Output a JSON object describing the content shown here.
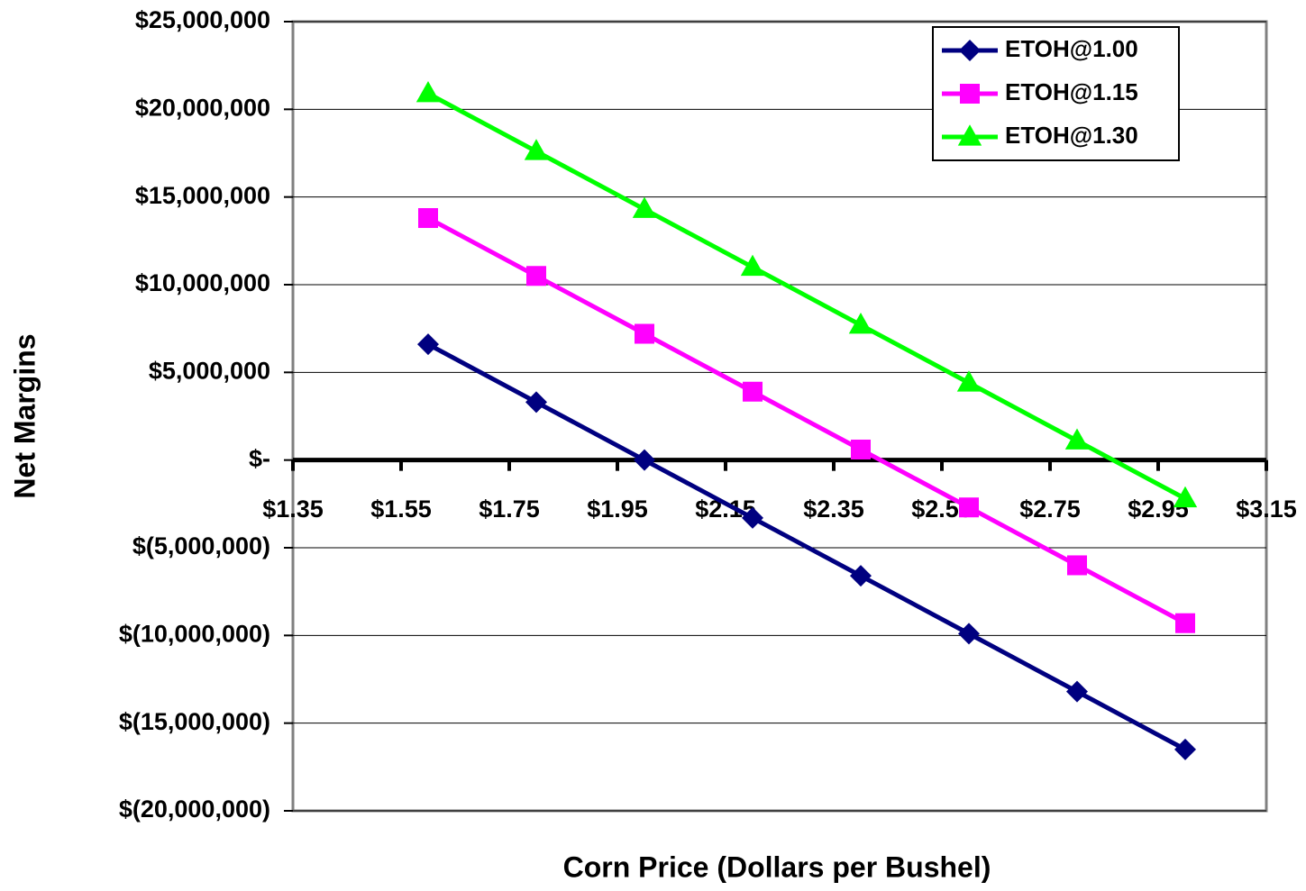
{
  "chart_data": {
    "type": "line",
    "x_label": "Corn Price (Dollars per Bushel)",
    "y_label": "Net Margins",
    "x": [
      1.6,
      1.8,
      2.0,
      2.2,
      2.4,
      2.6,
      2.8,
      3.0
    ],
    "series": [
      {
        "name": "ETOH@1.00",
        "color": "#000080",
        "marker": "diamond",
        "values": [
          6600000,
          3300000,
          0,
          -3300000,
          -6600000,
          -9900000,
          -13200000,
          -16500000
        ]
      },
      {
        "name": "ETOH@1.15",
        "color": "#ff00ff",
        "marker": "square",
        "values": [
          13800000,
          10500000,
          7200000,
          3900000,
          600000,
          -2700000,
          -6000000,
          -9300000
        ]
      },
      {
        "name": "ETOH@1.30",
        "color": "#00ff00",
        "marker": "triangle",
        "values": [
          20900000,
          17600000,
          14300000,
          11000000,
          7700000,
          4400000,
          1100000,
          -2200000
        ]
      }
    ],
    "xlim": [
      1.35,
      3.15
    ],
    "xticks": [
      {
        "value": 1.35,
        "label": "$1.35"
      },
      {
        "value": 1.55,
        "label": "$1.55"
      },
      {
        "value": 1.75,
        "label": "$1.75"
      },
      {
        "value": 1.95,
        "label": "$1.95"
      },
      {
        "value": 2.15,
        "label": "$2.15"
      },
      {
        "value": 2.35,
        "label": "$2.35"
      },
      {
        "value": 2.55,
        "label": "$2.55"
      },
      {
        "value": 2.75,
        "label": "$2.75"
      },
      {
        "value": 2.95,
        "label": "$2.95"
      },
      {
        "value": 3.15,
        "label": "$3.15"
      }
    ],
    "ylim": [
      -20000000,
      25000000
    ],
    "yticks": [
      {
        "value": 25000000,
        "label": "$25,000,000"
      },
      {
        "value": 20000000,
        "label": "$20,000,000"
      },
      {
        "value": 15000000,
        "label": "$15,000,000"
      },
      {
        "value": 10000000,
        "label": "$10,000,000"
      },
      {
        "value": 5000000,
        "label": "$5,000,000"
      },
      {
        "value": 0,
        "label": "$-"
      },
      {
        "value": -5000000,
        "label": "$(5,000,000)"
      },
      {
        "value": -10000000,
        "label": "$(10,000,000)"
      },
      {
        "value": -15000000,
        "label": "$(15,000,000)"
      },
      {
        "value": -20000000,
        "label": "$(20,000,000)"
      }
    ],
    "grid": true,
    "legend": "upper right"
  }
}
